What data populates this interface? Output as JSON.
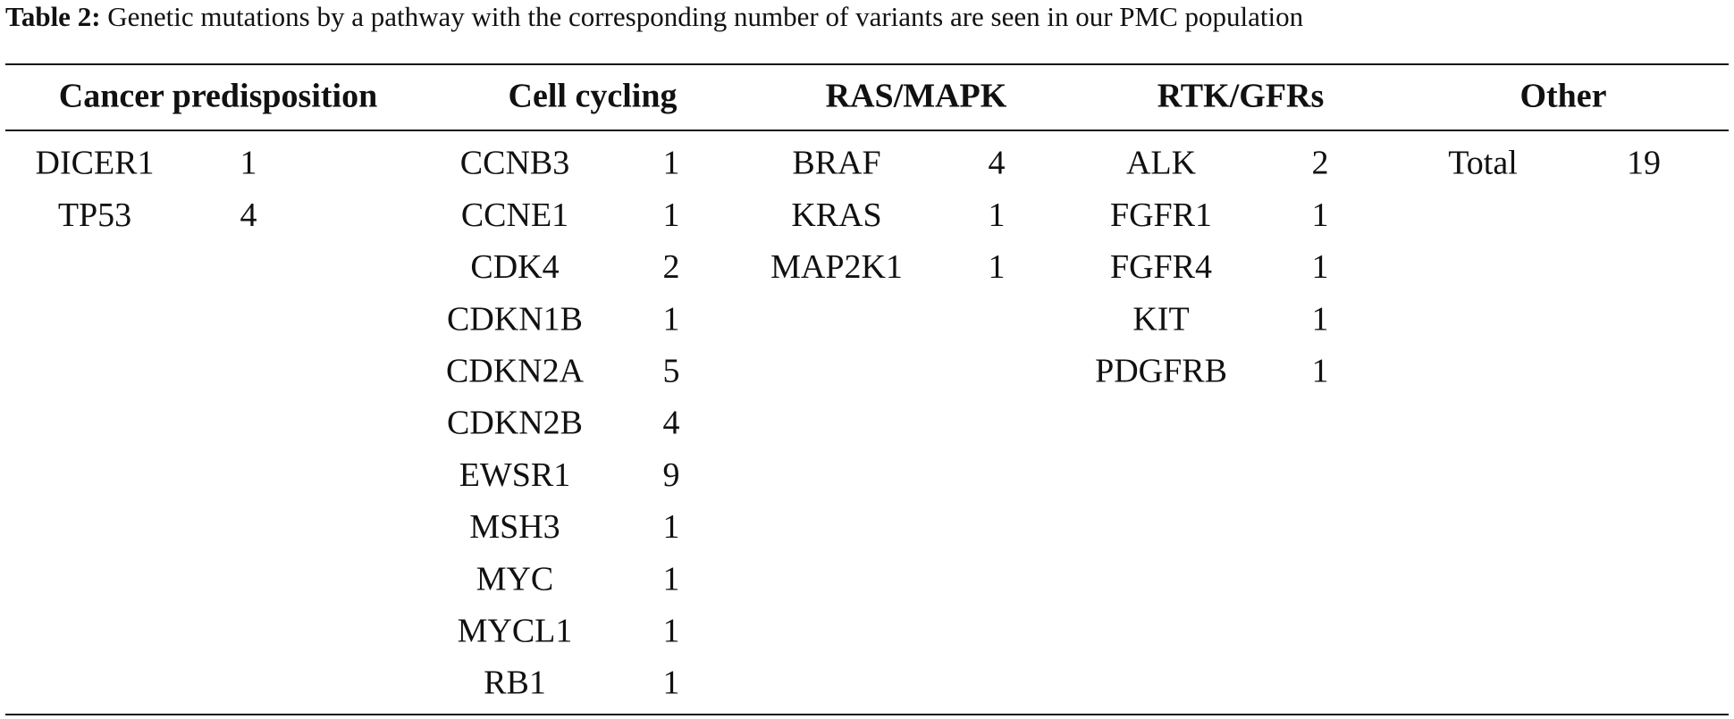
{
  "caption": {
    "label": "Table 2:",
    "text": "Genetic mutations by a pathway with the corresponding number of variants are seen in our PMC population"
  },
  "table": {
    "headers": [
      "Cancer predisposition",
      "Cell cycling",
      "RAS/MAPK",
      "RTK/GFRs",
      "Other"
    ],
    "columns": [
      [
        [
          "DICER1",
          1
        ],
        [
          "TP53",
          4
        ]
      ],
      [
        [
          "CCNB3",
          1
        ],
        [
          "CCNE1",
          1
        ],
        [
          "CDK4",
          2
        ],
        [
          "CDKN1B",
          1
        ],
        [
          "CDKN2A",
          5
        ],
        [
          "CDKN2B",
          4
        ],
        [
          "EWSR1",
          9
        ],
        [
          "MSH3",
          1
        ],
        [
          "MYC",
          1
        ],
        [
          "MYCL1",
          1
        ],
        [
          "RB1",
          1
        ]
      ],
      [
        [
          "BRAF",
          4
        ],
        [
          "KRAS",
          1
        ],
        [
          "MAP2K1",
          1
        ]
      ],
      [
        [
          "ALK",
          2
        ],
        [
          "FGFR1",
          1
        ],
        [
          "FGFR4",
          1
        ],
        [
          "KIT",
          1
        ],
        [
          "PDGFRB",
          1
        ]
      ],
      [
        [
          "Total",
          19
        ]
      ]
    ]
  }
}
